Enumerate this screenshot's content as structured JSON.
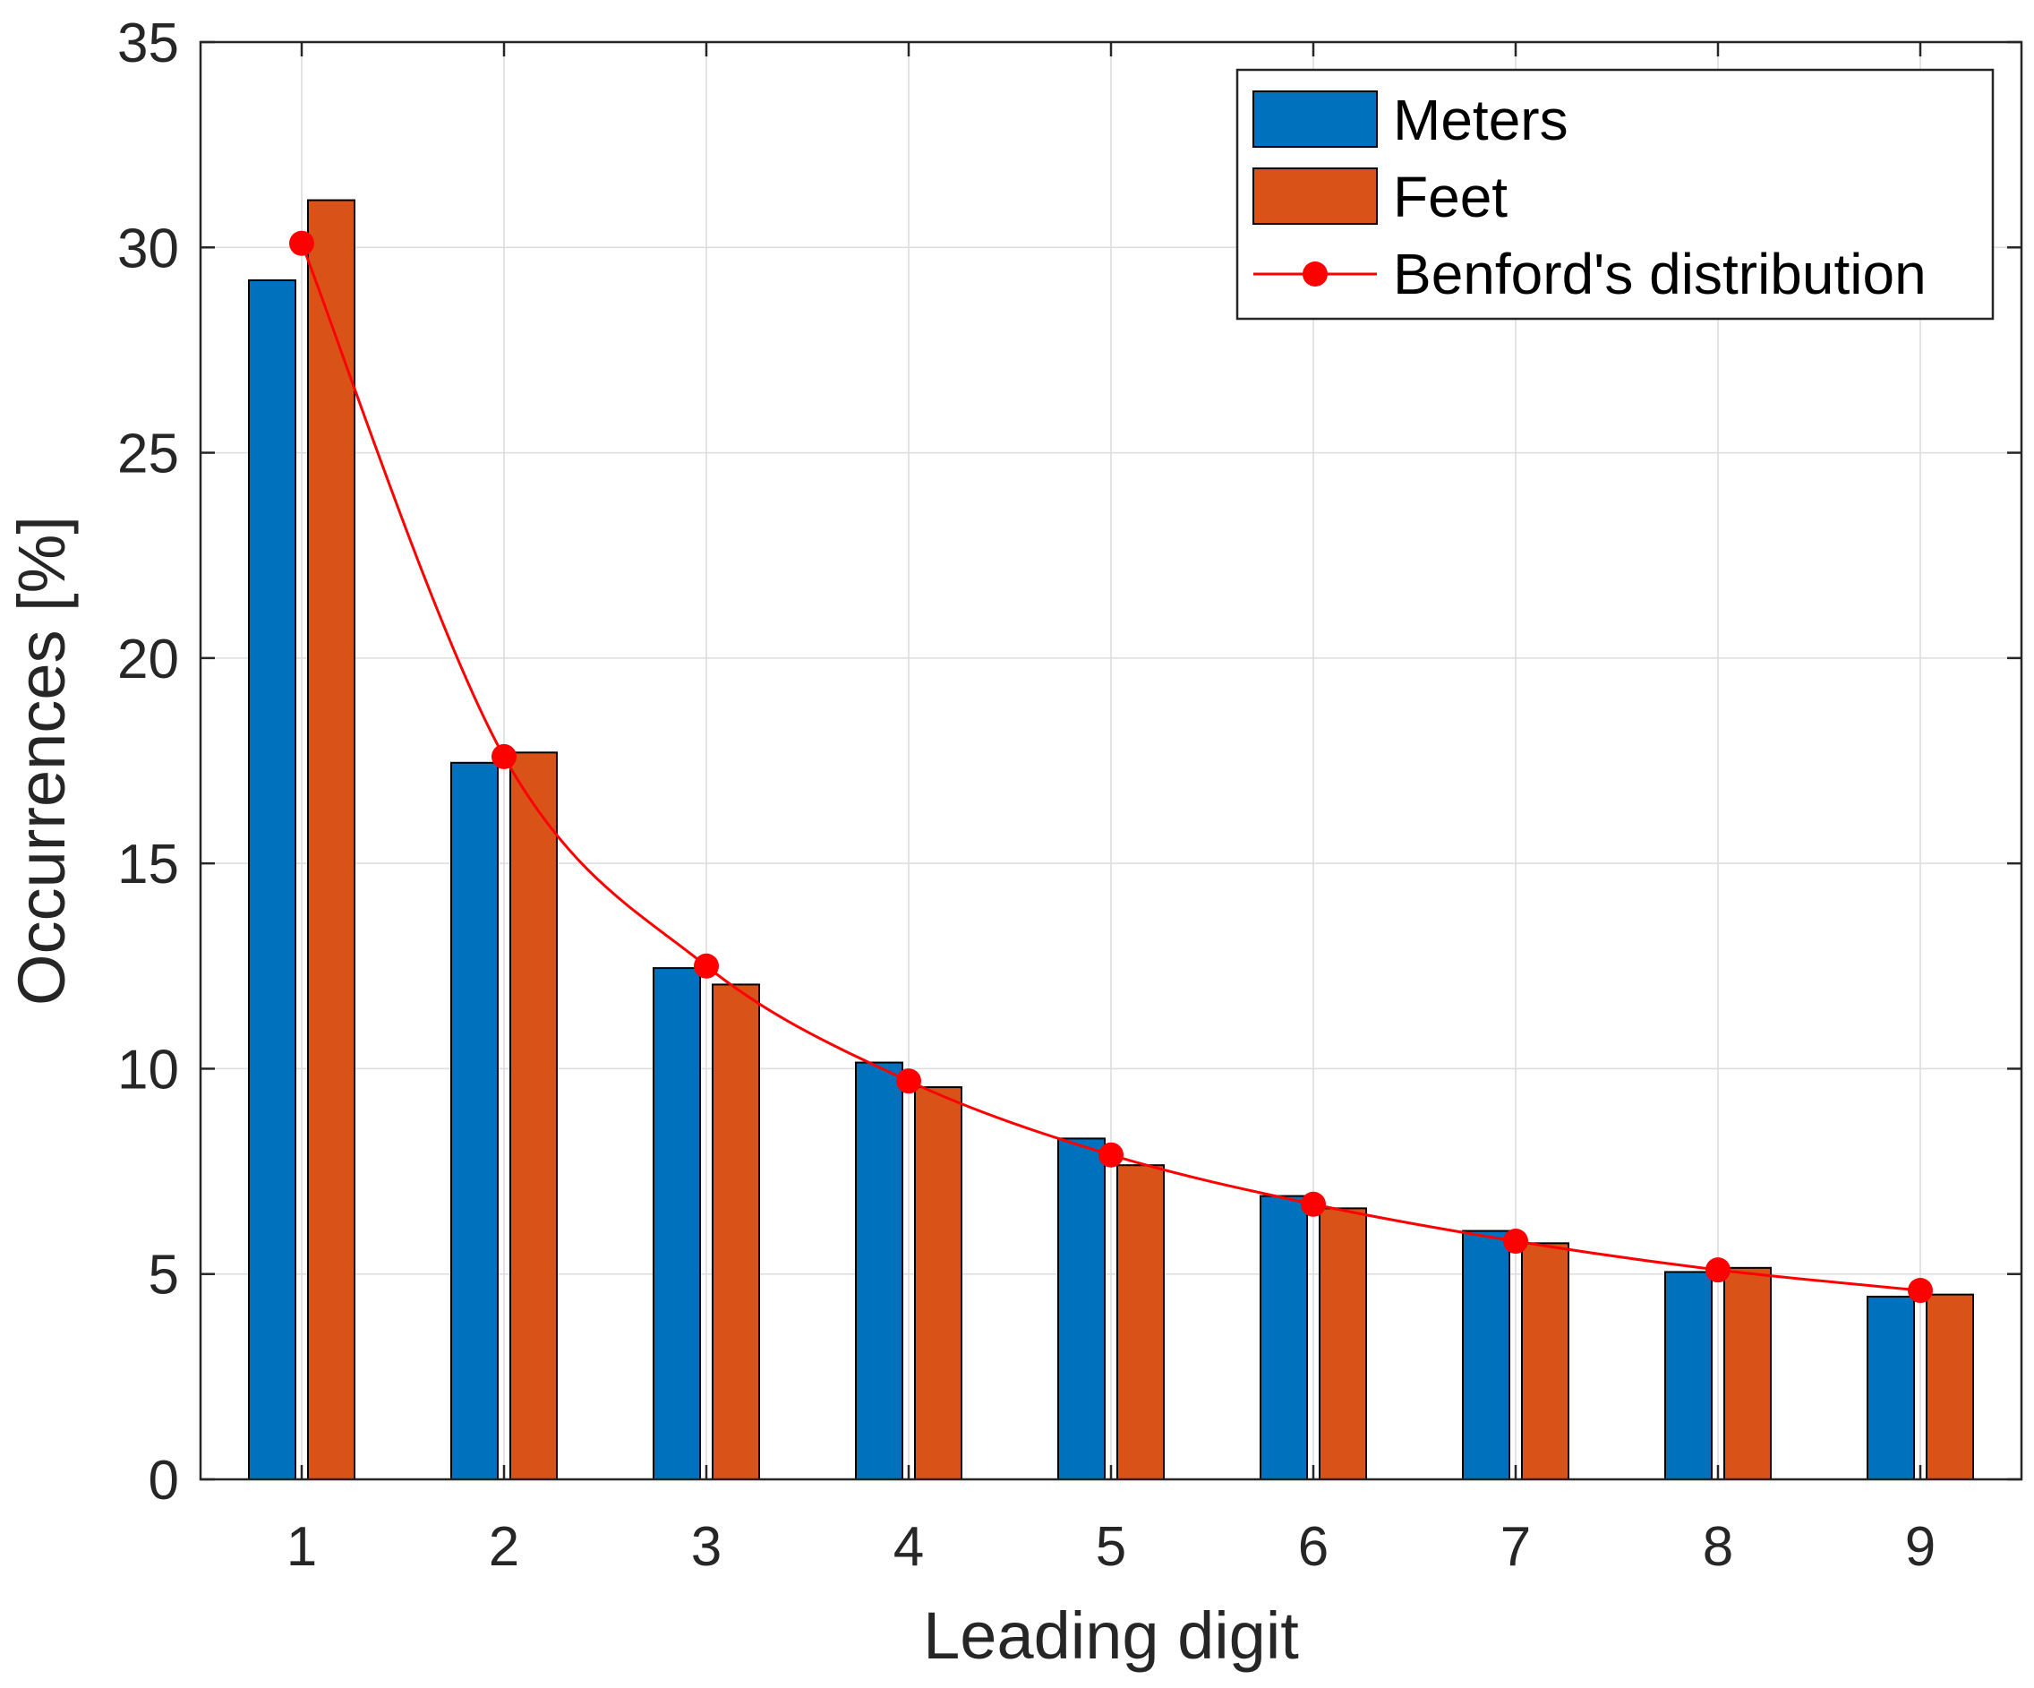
{
  "chart_data": {
    "type": "bar",
    "title": "",
    "xlabel": "Leading digit",
    "ylabel": "Occurrences [%]",
    "categories": [
      "1",
      "2",
      "3",
      "4",
      "5",
      "6",
      "7",
      "8",
      "9"
    ],
    "ylim": [
      0,
      35
    ],
    "yticks": [
      "0",
      "5",
      "10",
      "15",
      "20",
      "25",
      "30",
      "35"
    ],
    "grid": true,
    "legend_location": "top-right",
    "series": [
      {
        "name": "Meters",
        "kind": "bar",
        "color": "#0072BD",
        "values": [
          29.2,
          17.45,
          12.45,
          10.15,
          8.3,
          6.9,
          6.05,
          5.05,
          4.45
        ]
      },
      {
        "name": "Feet",
        "kind": "bar",
        "color": "#D95319",
        "values": [
          31.15,
          17.7,
          12.05,
          9.55,
          7.65,
          6.6,
          5.75,
          5.15,
          4.5
        ]
      },
      {
        "name": "Benford's distribution",
        "kind": "line",
        "color": "#FF0000",
        "values": [
          30.1,
          17.6,
          12.5,
          9.7,
          7.9,
          6.7,
          5.8,
          5.1,
          4.6
        ]
      }
    ]
  }
}
